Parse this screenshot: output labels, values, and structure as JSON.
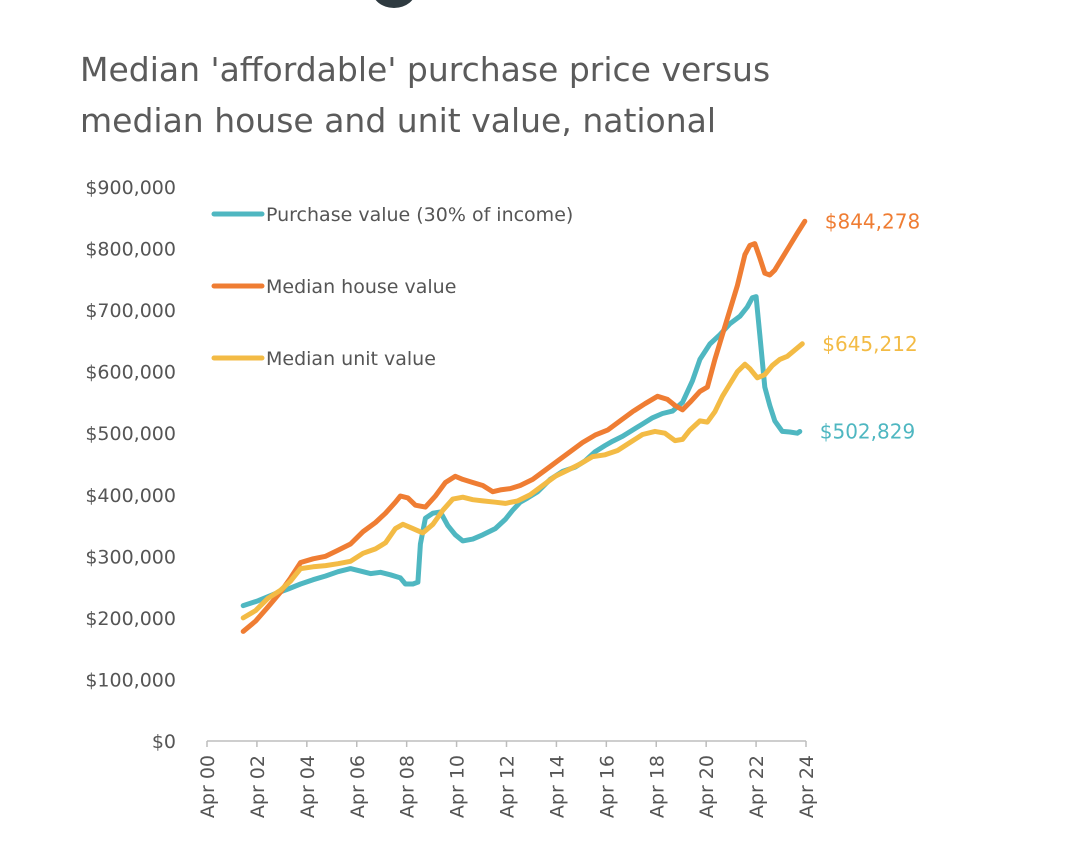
{
  "chart_data": {
    "type": "line",
    "title": [
      "Median 'affordable' purchase price versus",
      "median house and unit value, national"
    ],
    "xlabel": "",
    "ylabel": "",
    "ylim": [
      0,
      900000
    ],
    "yticks": [
      "$0",
      "$100,000",
      "$200,000",
      "$300,000",
      "$400,000",
      "$500,000",
      "$600,000",
      "$700,000",
      "$800,000",
      "$900,000"
    ],
    "xlim": [
      2000.25,
      2024.25
    ],
    "xticks": [
      {
        "label": "Apr 00",
        "x": 2000.25
      },
      {
        "label": "Apr 02",
        "x": 2002.25
      },
      {
        "label": "Apr 04",
        "x": 2004.25
      },
      {
        "label": "Apr 06",
        "x": 2006.25
      },
      {
        "label": "Apr 08",
        "x": 2008.25
      },
      {
        "label": "Apr 10",
        "x": 2010.25
      },
      {
        "label": "Apr 12",
        "x": 2012.25
      },
      {
        "label": "Apr 14",
        "x": 2014.25
      },
      {
        "label": "Apr 16",
        "x": 2016.25
      },
      {
        "label": "Apr 18",
        "x": 2018.25
      },
      {
        "label": "Apr 20",
        "x": 2020.25
      },
      {
        "label": "Apr 22",
        "x": 2022.25
      },
      {
        "label": "Apr 24",
        "x": 2024.25
      }
    ],
    "series": [
      {
        "name": "Purchase value (30% of income)",
        "color": "#4fb7c1",
        "end_label": "$502,829",
        "x": [
          2001.7,
          2002.3,
          2002.9,
          2003.5,
          2004.0,
          2004.5,
          2005.0,
          2005.5,
          2006.0,
          2006.4,
          2006.8,
          2007.2,
          2007.6,
          2008.0,
          2008.2,
          2008.5,
          2008.7,
          2008.8,
          2009.0,
          2009.3,
          2009.6,
          2009.9,
          2010.2,
          2010.5,
          2010.9,
          2011.3,
          2011.8,
          2012.2,
          2012.5,
          2012.8,
          2013.1,
          2013.5,
          2014.0,
          2014.5,
          2015.0,
          2015.4,
          2015.8,
          2016.2,
          2016.5,
          2016.9,
          2017.3,
          2017.7,
          2018.1,
          2018.5,
          2018.9,
          2019.3,
          2019.7,
          2020.0,
          2020.4,
          2020.8,
          2021.2,
          2021.6,
          2021.9,
          2022.1,
          2022.25,
          2022.4,
          2022.6,
          2022.8,
          2023.0,
          2023.3,
          2023.6,
          2023.9,
          2024.0
        ],
        "values": [
          220000,
          228000,
          238000,
          247000,
          255000,
          262000,
          268000,
          275000,
          280000,
          276000,
          272000,
          274000,
          270000,
          265000,
          255000,
          255000,
          258000,
          320000,
          362000,
          370000,
          372000,
          350000,
          335000,
          325000,
          328000,
          335000,
          345000,
          360000,
          375000,
          388000,
          395000,
          405000,
          425000,
          438000,
          445000,
          455000,
          470000,
          480000,
          487000,
          495000,
          505000,
          515000,
          525000,
          532000,
          536000,
          550000,
          585000,
          620000,
          645000,
          660000,
          678000,
          690000,
          705000,
          720000,
          722000,
          660000,
          575000,
          545000,
          520000,
          503000,
          502000,
          500000,
          502829
        ]
      },
      {
        "name": "Median house value",
        "color": "#ef7d33",
        "end_label": "$844,278",
        "x": [
          2001.7,
          2002.2,
          2002.7,
          2003.2,
          2003.6,
          2004.0,
          2004.5,
          2005.0,
          2005.5,
          2006.0,
          2006.5,
          2007.0,
          2007.4,
          2007.8,
          2008.0,
          2008.3,
          2008.6,
          2009.0,
          2009.4,
          2009.8,
          2010.2,
          2010.5,
          2010.9,
          2011.3,
          2011.7,
          2012.0,
          2012.4,
          2012.8,
          2013.3,
          2013.8,
          2014.3,
          2014.8,
          2015.3,
          2015.8,
          2016.3,
          2016.8,
          2017.3,
          2017.8,
          2018.3,
          2018.7,
          2019.0,
          2019.3,
          2019.6,
          2020.0,
          2020.3,
          2020.6,
          2020.9,
          2021.2,
          2021.5,
          2021.8,
          2022.0,
          2022.2,
          2022.4,
          2022.6,
          2022.8,
          2023.0,
          2023.3,
          2023.6,
          2023.9,
          2024.2
        ],
        "values": [
          178000,
          195000,
          218000,
          242000,
          265000,
          290000,
          296000,
          300000,
          310000,
          320000,
          340000,
          355000,
          370000,
          388000,
          398000,
          395000,
          383000,
          380000,
          398000,
          420000,
          430000,
          425000,
          420000,
          415000,
          405000,
          408000,
          410000,
          415000,
          425000,
          440000,
          455000,
          470000,
          485000,
          497000,
          505000,
          520000,
          535000,
          548000,
          560000,
          555000,
          545000,
          538000,
          550000,
          568000,
          575000,
          620000,
          660000,
          700000,
          740000,
          790000,
          805000,
          808000,
          785000,
          760000,
          757000,
          765000,
          785000,
          805000,
          825000,
          844278
        ]
      },
      {
        "name": "Median unit value",
        "color": "#f3bb45",
        "end_label": "$645,212",
        "x": [
          2001.7,
          2002.2,
          2002.7,
          2003.2,
          2003.6,
          2004.0,
          2004.5,
          2005.0,
          2005.5,
          2006.0,
          2006.5,
          2007.0,
          2007.4,
          2007.8,
          2008.1,
          2008.5,
          2008.9,
          2009.3,
          2009.7,
          2010.1,
          2010.5,
          2010.9,
          2011.3,
          2011.8,
          2012.2,
          2012.7,
          2013.2,
          2013.7,
          2014.2,
          2014.7,
          2015.2,
          2015.7,
          2016.2,
          2016.7,
          2017.2,
          2017.7,
          2018.2,
          2018.6,
          2019.0,
          2019.3,
          2019.6,
          2020.0,
          2020.3,
          2020.6,
          2020.9,
          2021.2,
          2021.5,
          2021.8,
          2022.0,
          2022.3,
          2022.6,
          2022.9,
          2023.2,
          2023.5,
          2023.8,
          2024.1
        ],
        "values": [
          200000,
          212000,
          232000,
          245000,
          260000,
          280000,
          283000,
          285000,
          288000,
          292000,
          305000,
          312000,
          322000,
          345000,
          352000,
          345000,
          338000,
          352000,
          375000,
          393000,
          396000,
          392000,
          390000,
          388000,
          386000,
          390000,
          400000,
          415000,
          430000,
          440000,
          450000,
          462000,
          465000,
          472000,
          485000,
          498000,
          503000,
          500000,
          488000,
          490000,
          505000,
          520000,
          518000,
          535000,
          560000,
          580000,
          600000,
          612000,
          605000,
          590000,
          595000,
          610000,
          620000,
          625000,
          635000,
          645212
        ]
      }
    ],
    "legend_position": "top-left",
    "grid": false
  }
}
